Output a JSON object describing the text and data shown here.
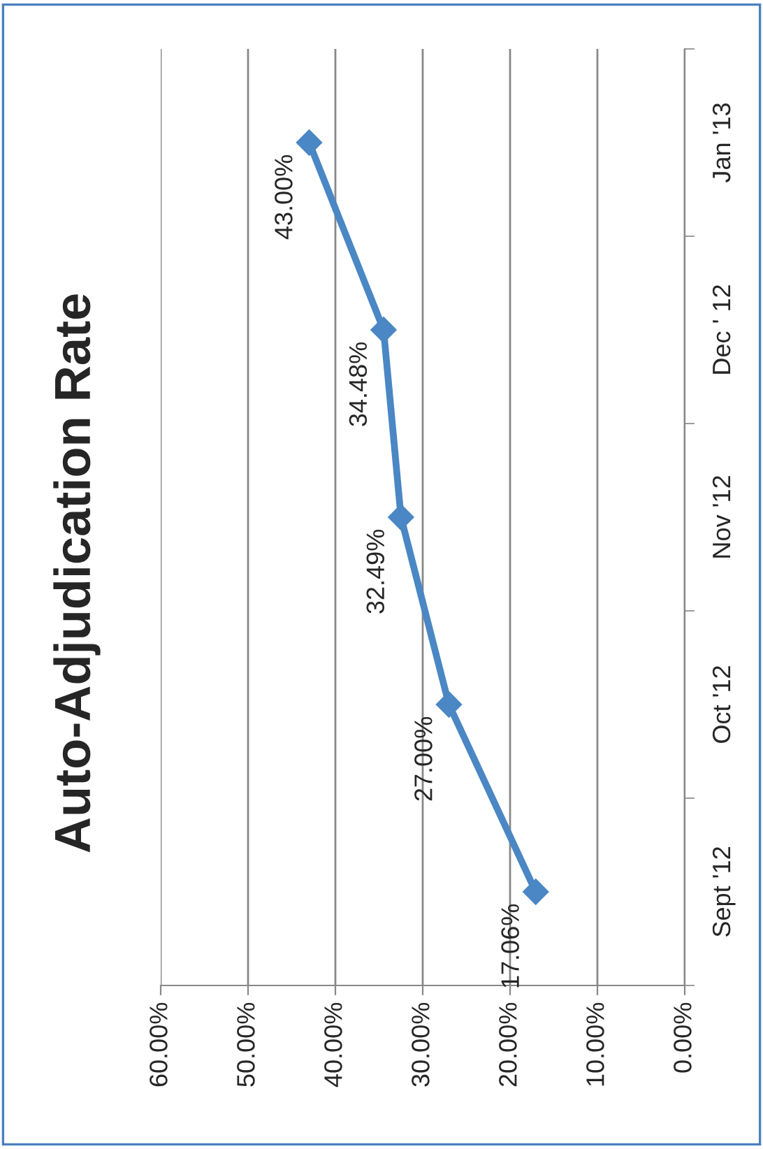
{
  "chart_data": {
    "type": "line",
    "title": "Auto-Adjudication Rate",
    "orientation": "horizontal",
    "categories": [
      "Jan '13",
      "Dec ' 12",
      "Nov '12",
      "Oct '12",
      "Sept '12"
    ],
    "values": [
      43.0,
      34.48,
      32.49,
      27.0,
      17.06
    ],
    "value_labels": [
      "43.00%",
      "34.48%",
      "32.49%",
      "27.00%",
      "17.06%"
    ],
    "color": "#4a87c4",
    "marker": "diamond",
    "line_style": "solid",
    "xlim": [
      60,
      0
    ],
    "xticks": [
      {
        "value": 60,
        "label": "60.00%"
      },
      {
        "value": 50,
        "label": "50.00%"
      },
      {
        "value": 40,
        "label": "40.00%"
      },
      {
        "value": 30,
        "label": "30.00%"
      },
      {
        "value": 20,
        "label": "20.00%"
      },
      {
        "value": 10,
        "label": "10.00%"
      },
      {
        "value": 0,
        "label": "0.00%"
      }
    ],
    "grid": "x"
  }
}
